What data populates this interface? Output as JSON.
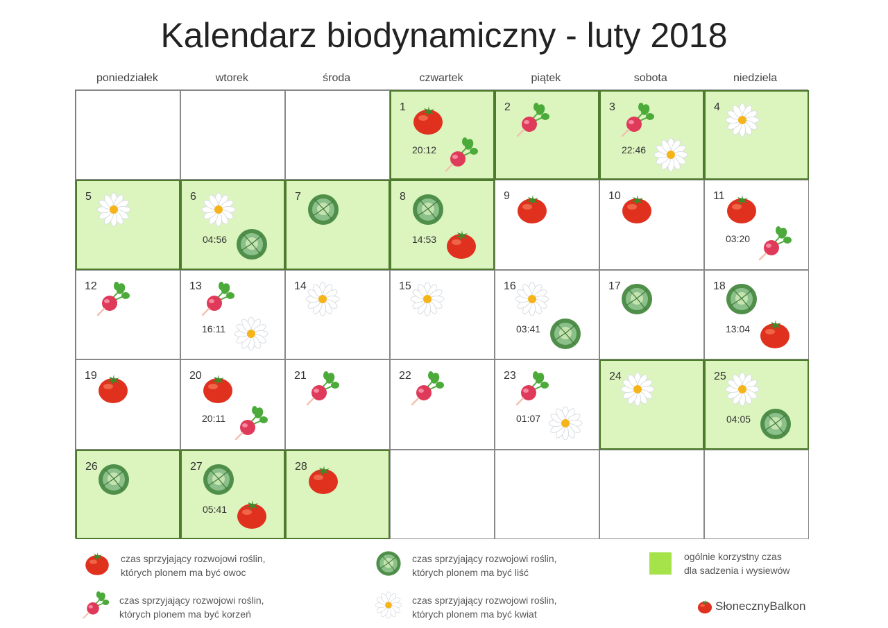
{
  "title": "Kalendarz biodynamiczny - luty 2018",
  "weekdays": [
    "poniedziałek",
    "wtorek",
    "środa",
    "czwartek",
    "piątek",
    "sobota",
    "niedziela"
  ],
  "colors": {
    "favorable_bg": "#dcf5bf",
    "favorable_border": "#4d7a2c",
    "legend_green": "#a6e34a"
  },
  "cells": [
    null,
    null,
    null,
    {
      "day": "1",
      "green": true,
      "icons": [
        "tomato-icon",
        "radish-icon"
      ],
      "time": "20:12"
    },
    {
      "day": "2",
      "green": true,
      "icons": [
        "radish-icon"
      ]
    },
    {
      "day": "3",
      "green": true,
      "icons": [
        "radish-icon",
        "flower-icon"
      ],
      "time": "22:46"
    },
    {
      "day": "4",
      "green": true,
      "icons": [
        "flower-icon"
      ]
    },
    {
      "day": "5",
      "green": true,
      "icons": [
        "flower-icon"
      ]
    },
    {
      "day": "6",
      "green": true,
      "icons": [
        "flower-icon",
        "cabbage-icon"
      ],
      "time": "04:56"
    },
    {
      "day": "7",
      "green": true,
      "icons": [
        "cabbage-icon"
      ]
    },
    {
      "day": "8",
      "green": true,
      "icons": [
        "cabbage-icon",
        "tomato-icon"
      ],
      "time": "14:53"
    },
    {
      "day": "9",
      "green": false,
      "icons": [
        "tomato-icon"
      ]
    },
    {
      "day": "10",
      "green": false,
      "icons": [
        "tomato-icon"
      ]
    },
    {
      "day": "11",
      "green": false,
      "icons": [
        "tomato-icon",
        "radish-icon"
      ],
      "time": "03:20"
    },
    {
      "day": "12",
      "green": false,
      "icons": [
        "radish-icon"
      ]
    },
    {
      "day": "13",
      "green": false,
      "icons": [
        "radish-icon",
        "flower-icon"
      ],
      "time": "16:11"
    },
    {
      "day": "14",
      "green": false,
      "icons": [
        "flower-icon"
      ]
    },
    {
      "day": "15",
      "green": false,
      "icons": [
        "flower-icon"
      ]
    },
    {
      "day": "16",
      "green": false,
      "icons": [
        "flower-icon",
        "cabbage-icon"
      ],
      "time": "03:41"
    },
    {
      "day": "17",
      "green": false,
      "icons": [
        "cabbage-icon"
      ]
    },
    {
      "day": "18",
      "green": false,
      "icons": [
        "cabbage-icon",
        "tomato-icon"
      ],
      "time": "13:04"
    },
    {
      "day": "19",
      "green": false,
      "icons": [
        "tomato-icon"
      ]
    },
    {
      "day": "20",
      "green": false,
      "icons": [
        "tomato-icon",
        "radish-icon"
      ],
      "time": "20:11"
    },
    {
      "day": "21",
      "green": false,
      "icons": [
        "radish-icon"
      ]
    },
    {
      "day": "22",
      "green": false,
      "icons": [
        "radish-icon"
      ]
    },
    {
      "day": "23",
      "green": false,
      "icons": [
        "radish-icon",
        "flower-icon"
      ],
      "time": "01:07"
    },
    {
      "day": "24",
      "green": true,
      "icons": [
        "flower-icon"
      ]
    },
    {
      "day": "25",
      "green": true,
      "icons": [
        "flower-icon",
        "cabbage-icon"
      ],
      "time": "04:05"
    },
    {
      "day": "26",
      "green": true,
      "icons": [
        "cabbage-icon"
      ]
    },
    {
      "day": "27",
      "green": true,
      "icons": [
        "cabbage-icon",
        "tomato-icon"
      ],
      "time": "05:41"
    },
    {
      "day": "28",
      "green": true,
      "icons": [
        "tomato-icon"
      ]
    },
    null,
    null,
    null,
    null
  ],
  "legend": {
    "fruit": {
      "icon": "tomato-icon",
      "line1": "czas sprzyjający rozwojowi roślin,",
      "line2": "których plonem ma być owoc"
    },
    "leaf": {
      "icon": "cabbage-icon",
      "line1": "czas sprzyjający rozwojowi roślin,",
      "line2": "których plonem ma być liść"
    },
    "general": {
      "line1": "ogólnie korzystny czas",
      "line2": "dla sadzenia i wysiewów"
    },
    "root": {
      "icon": "radish-icon",
      "line1": "czas sprzyjający rozwojowi roślin,",
      "line2": "których plonem ma być korzeń"
    },
    "flower": {
      "icon": "flower-icon",
      "line1": "czas sprzyjający rozwojowi roślin,",
      "line2": "których plonem ma być kwiat"
    }
  },
  "brand": "SłonecznyBalkon"
}
